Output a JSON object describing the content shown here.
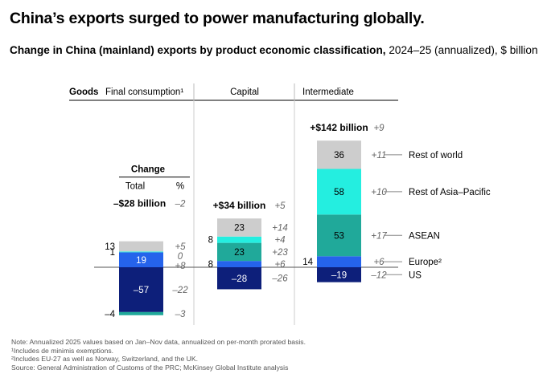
{
  "headline": "China’s exports surged to power manufacturing globally.",
  "subtitle": {
    "bold": "Change in China (mainland) exports by product economic classification,",
    "rest": " 2024–25 (annualized), $ billion"
  },
  "colors": {
    "US": "#0d1f7a",
    "Europe": "#2563eb",
    "ASEAN": "#20a99a",
    "Rest of Asia–Pacific": "#24eee0",
    "Rest of world": "#cdcdcd"
  },
  "chart_data": {
    "type": "bar",
    "stacked": true,
    "diverging": true,
    "header_label": "Goods",
    "categories": [
      "Final consumption¹",
      "Capital",
      "Intermediate"
    ],
    "category_totals": [
      "–$28 billion",
      "+$34 billion",
      "+$142 billion"
    ],
    "category_total_pct": [
      "–2",
      "+5",
      "+9"
    ],
    "change_header": "Change",
    "change_col_total": "Total",
    "change_col_pct": "%",
    "series": [
      {
        "name": "US",
        "label": "US",
        "values": [
          -57,
          -28,
          -19
        ],
        "value_labels": [
          "–57",
          "–28",
          "–19"
        ],
        "pct": [
          "–22",
          "–26",
          "–12"
        ]
      },
      {
        "name": "Europe",
        "label": "Europe²",
        "values": [
          19,
          8,
          14
        ],
        "value_labels": [
          "19",
          "8",
          "14"
        ],
        "pct": [
          "+8",
          "+6",
          "+6"
        ]
      },
      {
        "name": "ASEAN",
        "label": "ASEAN",
        "values": [
          -4,
          23,
          53
        ],
        "value_labels": [
          "–4",
          "23",
          "53"
        ],
        "pct": [
          "–3",
          "+23",
          "+17"
        ]
      },
      {
        "name": "Rest of Asia–Pacific",
        "label": "Rest of Asia–Pacific",
        "values": [
          1,
          8,
          58
        ],
        "value_labels": [
          "1",
          "8",
          "58"
        ],
        "pct": [
          "0",
          "+4",
          "+10"
        ]
      },
      {
        "name": "Rest of world",
        "label": "Rest of world",
        "values": [
          13,
          23,
          36
        ],
        "value_labels": [
          "13",
          "23",
          "36"
        ],
        "pct": [
          "+5",
          "+14",
          "+11"
        ]
      }
    ]
  },
  "notes": [
    "Note: Annualized 2025 values based on Jan–Nov data, annualized on per-month prorated basis.",
    "¹Includes de minimis exemptions.",
    "²Includes EU-27 as well as Norway, Switzerland, and the UK.",
    "Source: General Administration of Customs of the PRC; McKinsey Global Institute analysis"
  ]
}
